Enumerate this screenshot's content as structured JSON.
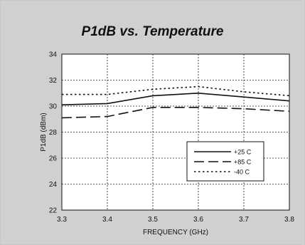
{
  "chart_data": {
    "type": "line",
    "title": "P1dB vs. Temperature",
    "xlabel": "FREQUENCY (GHz)",
    "ylabel": "P1dB (dBm)",
    "xlim": [
      3.3,
      3.8
    ],
    "ylim": [
      22,
      34
    ],
    "xticks": [
      "3.3",
      "3.4",
      "3.5",
      "3.6",
      "3.7",
      "3.8"
    ],
    "yticks": [
      "22",
      "24",
      "26",
      "28",
      "30",
      "32",
      "34"
    ],
    "grid": true,
    "legend_position": "lower-right",
    "x": [
      3.3,
      3.4,
      3.5,
      3.6,
      3.7,
      3.8
    ],
    "series": [
      {
        "name": "+25 C",
        "style": "solid",
        "values": [
          30.1,
          30.2,
          30.8,
          31.0,
          30.7,
          30.4
        ]
      },
      {
        "name": "+85 C",
        "style": "dashed",
        "values": [
          29.1,
          29.2,
          29.9,
          29.9,
          29.8,
          29.6
        ]
      },
      {
        "name": "-40 C",
        "style": "dotted",
        "values": [
          30.9,
          30.9,
          31.3,
          31.5,
          31.1,
          30.8
        ]
      }
    ]
  },
  "colors": {
    "frame": "#d0d0d0",
    "plot_bg": "#ffffff",
    "line": "#111111"
  }
}
